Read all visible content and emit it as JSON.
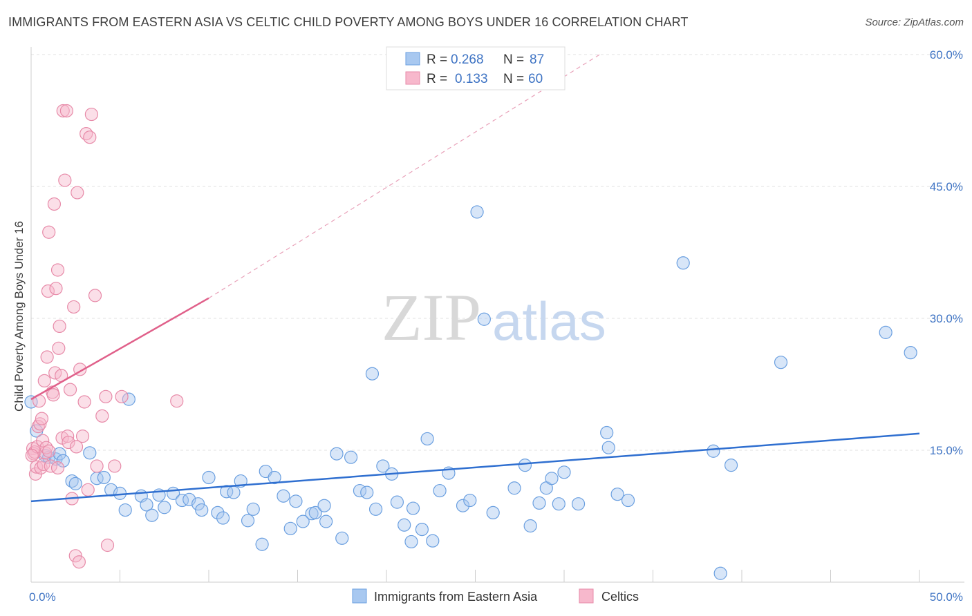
{
  "header": {
    "title": "IMMIGRANTS FROM EASTERN ASIA VS CELTIC CHILD POVERTY AMONG BOYS UNDER 16 CORRELATION CHART",
    "source": "Source: ZipAtlas.com"
  },
  "watermark": {
    "zip": "ZIP",
    "atlas": "atlas"
  },
  "legend": {
    "rows": [
      {
        "r_label": "R =",
        "r_value": "0.268",
        "n_label": "N =",
        "n_value": "87",
        "color": "#a8c8f0"
      },
      {
        "r_label": "R =",
        "r_value": "0.133",
        "n_label": "N =",
        "n_value": "60",
        "color": "#f7b8cc"
      }
    ]
  },
  "chart_data": {
    "type": "scatter",
    "title": "IMMIGRANTS FROM EASTERN ASIA VS CELTIC CHILD POVERTY AMONG BOYS UNDER 16 CORRELATION CHART",
    "xlabel": "",
    "ylabel": "Child Poverty Among Boys Under 16",
    "xlim": [
      0,
      50
    ],
    "ylim": [
      0,
      60
    ],
    "x_tick_labels": [
      "0.0%",
      "50.0%"
    ],
    "y_ticks": [
      15,
      30,
      45,
      60
    ],
    "y_tick_labels": [
      "15.0%",
      "30.0%",
      "45.0%",
      "60.0%"
    ],
    "grid": true,
    "legend_position": "bottom-center",
    "series": [
      {
        "name": "Immigrants from Eastern Asia",
        "color": "#a8c8f0",
        "stroke": "#6a9fe0",
        "trend": {
          "x0": 0,
          "y0": 9.2,
          "x1": 50,
          "y1": 16.9,
          "color": "#2f6fd0"
        },
        "points": [
          [
            0.0,
            20.5
          ],
          [
            0.3,
            17.2
          ],
          [
            0.8,
            14.4
          ],
          [
            1.0,
            14.2
          ],
          [
            1.4,
            14.0
          ],
          [
            1.6,
            14.6
          ],
          [
            1.8,
            13.8
          ],
          [
            2.3,
            11.5
          ],
          [
            2.5,
            11.2
          ],
          [
            3.3,
            14.7
          ],
          [
            3.7,
            11.8
          ],
          [
            4.1,
            11.9
          ],
          [
            4.5,
            10.5
          ],
          [
            5.0,
            10.1
          ],
          [
            5.3,
            8.2
          ],
          [
            5.5,
            20.8
          ],
          [
            6.2,
            9.8
          ],
          [
            6.5,
            8.8
          ],
          [
            6.8,
            7.6
          ],
          [
            7.2,
            9.9
          ],
          [
            7.5,
            8.5
          ],
          [
            8.0,
            10.1
          ],
          [
            8.5,
            9.3
          ],
          [
            8.9,
            9.4
          ],
          [
            9.4,
            8.9
          ],
          [
            9.6,
            8.2
          ],
          [
            10.0,
            11.9
          ],
          [
            10.5,
            7.9
          ],
          [
            10.8,
            7.3
          ],
          [
            11.0,
            10.3
          ],
          [
            11.4,
            10.2
          ],
          [
            11.8,
            11.5
          ],
          [
            12.2,
            7.0
          ],
          [
            12.5,
            8.3
          ],
          [
            13.0,
            4.3
          ],
          [
            13.2,
            12.6
          ],
          [
            13.7,
            11.9
          ],
          [
            14.2,
            9.8
          ],
          [
            14.6,
            6.1
          ],
          [
            14.9,
            9.2
          ],
          [
            15.3,
            6.9
          ],
          [
            15.8,
            7.8
          ],
          [
            16.0,
            7.9
          ],
          [
            16.5,
            8.7
          ],
          [
            16.6,
            6.9
          ],
          [
            17.2,
            14.6
          ],
          [
            17.5,
            5.0
          ],
          [
            18.0,
            14.2
          ],
          [
            18.5,
            10.4
          ],
          [
            18.9,
            10.2
          ],
          [
            19.2,
            23.7
          ],
          [
            19.4,
            8.3
          ],
          [
            19.8,
            13.2
          ],
          [
            20.3,
            12.3
          ],
          [
            20.6,
            9.1
          ],
          [
            21.0,
            6.5
          ],
          [
            21.4,
            4.6
          ],
          [
            21.5,
            8.4
          ],
          [
            22.0,
            6.0
          ],
          [
            22.3,
            16.3
          ],
          [
            22.6,
            4.7
          ],
          [
            23.0,
            10.4
          ],
          [
            23.5,
            12.4
          ],
          [
            24.3,
            8.7
          ],
          [
            24.7,
            9.3
          ],
          [
            25.1,
            42.1
          ],
          [
            25.5,
            29.9
          ],
          [
            26.0,
            7.9
          ],
          [
            27.2,
            10.7
          ],
          [
            27.8,
            13.3
          ],
          [
            28.1,
            6.4
          ],
          [
            28.6,
            9.0
          ],
          [
            29.0,
            10.7
          ],
          [
            29.3,
            11.8
          ],
          [
            29.7,
            8.9
          ],
          [
            30.0,
            12.5
          ],
          [
            30.8,
            8.9
          ],
          [
            32.4,
            17.0
          ],
          [
            32.5,
            15.3
          ],
          [
            33.0,
            10.0
          ],
          [
            33.6,
            9.3
          ],
          [
            36.7,
            36.3
          ],
          [
            38.4,
            14.9
          ],
          [
            38.8,
            1.0
          ],
          [
            39.4,
            13.3
          ],
          [
            42.2,
            25.0
          ],
          [
            48.1,
            28.4
          ],
          [
            49.5,
            26.1
          ]
        ]
      },
      {
        "name": "Celtics",
        "color": "#f7b8cc",
        "stroke": "#e78aa8",
        "trend": {
          "x0": 0,
          "y0": 20.8,
          "x1": 10,
          "y1": 32.3,
          "dash_x1": 32,
          "dash_y1": 60,
          "color": "#e0608a"
        },
        "points": [
          [
            0.1,
            15.2
          ],
          [
            0.15,
            14.6
          ],
          [
            0.2,
            14.8
          ],
          [
            0.25,
            12.3
          ],
          [
            0.3,
            13.1
          ],
          [
            0.35,
            15.4
          ],
          [
            0.4,
            17.7
          ],
          [
            0.45,
            20.6
          ],
          [
            0.5,
            18.0
          ],
          [
            0.55,
            13.0
          ],
          [
            0.6,
            18.6
          ],
          [
            0.65,
            16.1
          ],
          [
            0.7,
            13.4
          ],
          [
            0.75,
            22.9
          ],
          [
            0.8,
            14.7
          ],
          [
            0.85,
            15.3
          ],
          [
            0.9,
            25.6
          ],
          [
            0.95,
            33.1
          ],
          [
            1.0,
            39.8
          ],
          [
            1.1,
            13.2
          ],
          [
            1.2,
            21.6
          ],
          [
            1.25,
            21.3
          ],
          [
            1.3,
            43.0
          ],
          [
            1.35,
            23.8
          ],
          [
            1.4,
            33.4
          ],
          [
            1.5,
            35.5
          ],
          [
            1.55,
            26.6
          ],
          [
            1.6,
            29.1
          ],
          [
            1.7,
            23.5
          ],
          [
            1.75,
            16.4
          ],
          [
            1.8,
            53.6
          ],
          [
            1.9,
            45.7
          ],
          [
            2.0,
            53.6
          ],
          [
            2.05,
            16.6
          ],
          [
            2.1,
            15.9
          ],
          [
            2.2,
            21.9
          ],
          [
            2.3,
            9.5
          ],
          [
            2.4,
            31.3
          ],
          [
            2.5,
            3.0
          ],
          [
            2.55,
            15.4
          ],
          [
            2.6,
            44.3
          ],
          [
            2.7,
            2.3
          ],
          [
            2.75,
            24.2
          ],
          [
            2.9,
            16.6
          ],
          [
            3.0,
            20.5
          ],
          [
            3.1,
            51.0
          ],
          [
            3.2,
            10.5
          ],
          [
            3.3,
            50.6
          ],
          [
            3.4,
            53.2
          ],
          [
            3.6,
            32.6
          ],
          [
            3.7,
            13.2
          ],
          [
            4.0,
            18.9
          ],
          [
            4.2,
            21.1
          ],
          [
            4.3,
            4.2
          ],
          [
            4.7,
            13.2
          ],
          [
            5.1,
            21.1
          ],
          [
            8.2,
            20.6
          ],
          [
            0.05,
            14.4
          ],
          [
            1.0,
            14.9
          ],
          [
            1.5,
            13.0
          ]
        ]
      }
    ]
  },
  "bottom_legend": {
    "items": [
      {
        "label": "Immigrants from Eastern Asia",
        "color": "#a8c8f0"
      },
      {
        "label": "Celtics",
        "color": "#f7b8cc"
      }
    ]
  }
}
